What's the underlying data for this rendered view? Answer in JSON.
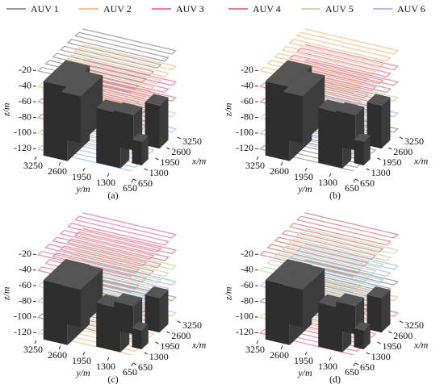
{
  "legend": [
    {
      "name": "AUV 1",
      "color": "#9a9a9a"
    },
    {
      "name": "AUV 2",
      "color": "#f3c48f"
    },
    {
      "name": "AUV 3",
      "color": "#e97fa4"
    },
    {
      "name": "AUV 4",
      "color": "#d98686"
    },
    {
      "name": "AUV 5",
      "color": "#c9d6ae"
    },
    {
      "name": "AUV 6",
      "color": "#a9c1ea"
    }
  ],
  "panels": [
    {
      "label": "(a)",
      "z_label": "z/m",
      "y_label": "y/m",
      "x_label": "x/m",
      "zticks": [
        -20,
        -40,
        -60,
        -80,
        -100,
        -120
      ],
      "yticks": [
        3250,
        2600,
        1950,
        1300,
        650
      ],
      "xticks": [
        650,
        1300,
        1950,
        2600,
        3250
      ]
    },
    {
      "label": "(b)",
      "z_label": "z/m",
      "y_label": "y/m",
      "x_label": "x/m",
      "zticks": [
        -20,
        -40,
        -60,
        -80,
        -100,
        -120
      ],
      "yticks": [
        3250,
        2600,
        1950,
        1300,
        650
      ],
      "xticks": [
        650,
        1300,
        1950,
        2600,
        3250
      ]
    },
    {
      "label": "(c)",
      "z_label": "z/m",
      "y_label": "y/m",
      "x_label": "x/m",
      "zticks": [
        -20,
        -40,
        -60,
        -80,
        -100,
        -120
      ],
      "yticks": [
        3250,
        2600,
        1950,
        1300,
        650
      ],
      "xticks": [
        650,
        1300,
        1950,
        2600,
        3250
      ]
    },
    {
      "label": "(d)",
      "z_label": "z/m",
      "y_label": "y/m",
      "x_label": "x/m",
      "zticks": [
        -20,
        -40,
        -60,
        -80,
        -100,
        -120
      ],
      "yticks": [
        3250,
        2600,
        1950,
        1300,
        650
      ],
      "xticks": [
        650,
        1300,
        1950,
        2600,
        3250
      ]
    }
  ]
}
